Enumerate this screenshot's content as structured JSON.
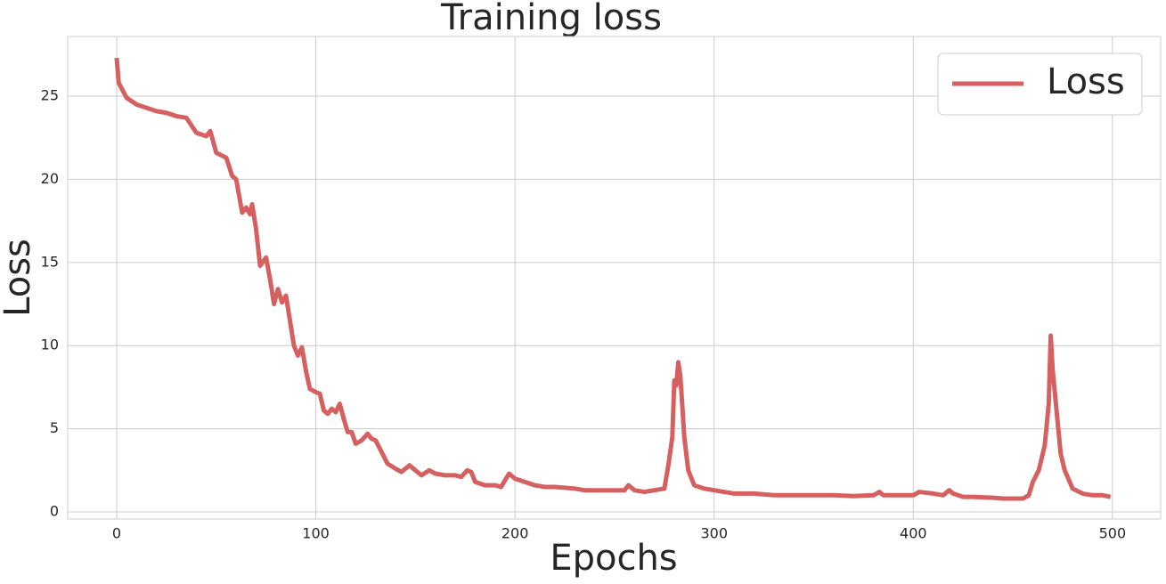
{
  "chart_data": {
    "type": "line",
    "title": "Training loss",
    "x_label": "Epochs",
    "y_label": "Loss",
    "x": [
      0,
      1,
      5,
      10,
      15,
      20,
      25,
      30,
      35,
      40,
      45,
      47,
      50,
      55,
      58,
      60,
      63,
      65,
      67,
      68,
      70,
      72,
      75,
      77,
      79,
      81,
      83,
      85,
      87,
      89,
      91,
      93,
      95,
      97,
      100,
      102,
      104,
      106,
      108,
      110,
      112,
      114,
      116,
      118,
      120,
      123,
      126,
      128,
      130,
      133,
      136,
      140,
      143,
      147,
      150,
      153,
      157,
      160,
      165,
      170,
      173,
      176,
      178,
      180,
      185,
      190,
      193,
      197,
      200,
      205,
      210,
      215,
      220,
      230,
      235,
      240,
      245,
      250,
      255,
      257,
      260,
      265,
      270,
      275,
      277,
      279,
      280,
      281,
      282,
      283,
      284,
      285,
      287,
      290,
      295,
      300,
      310,
      320,
      330,
      340,
      350,
      360,
      370,
      380,
      383,
      385,
      390,
      395,
      400,
      403,
      410,
      415,
      418,
      420,
      425,
      430,
      440,
      445,
      450,
      455,
      458,
      460,
      463,
      466,
      468,
      469,
      470,
      472,
      474,
      476,
      480,
      485,
      490,
      495,
      499
    ],
    "series": [
      {
        "name": "Loss",
        "color": "#d65f5f",
        "values": [
          27.3,
          25.8,
          24.9,
          24.5,
          24.3,
          24.1,
          24.0,
          23.8,
          23.7,
          22.8,
          22.6,
          22.9,
          21.6,
          21.3,
          20.2,
          20.0,
          18.0,
          18.3,
          17.9,
          18.5,
          17.0,
          14.8,
          15.3,
          14.0,
          12.5,
          13.4,
          12.6,
          13.0,
          11.5,
          10.0,
          9.4,
          9.9,
          8.5,
          7.4,
          7.2,
          7.1,
          6.1,
          5.9,
          6.2,
          6.0,
          6.5,
          5.6,
          4.8,
          4.8,
          4.1,
          4.3,
          4.7,
          4.4,
          4.3,
          3.6,
          2.9,
          2.6,
          2.4,
          2.8,
          2.5,
          2.2,
          2.5,
          2.3,
          2.2,
          2.2,
          2.1,
          2.5,
          2.4,
          1.8,
          1.6,
          1.6,
          1.5,
          2.3,
          2.0,
          1.8,
          1.6,
          1.5,
          1.5,
          1.4,
          1.3,
          1.3,
          1.3,
          1.3,
          1.3,
          1.6,
          1.3,
          1.2,
          1.3,
          1.4,
          2.8,
          4.5,
          7.9,
          7.6,
          9.0,
          8.2,
          6.4,
          4.5,
          2.5,
          1.6,
          1.4,
          1.3,
          1.1,
          1.1,
          1.0,
          1.0,
          1.0,
          1.0,
          0.95,
          1.0,
          1.2,
          1.0,
          1.0,
          1.0,
          1.0,
          1.2,
          1.1,
          1.0,
          1.3,
          1.1,
          0.9,
          0.9,
          0.85,
          0.8,
          0.8,
          0.8,
          1.0,
          1.8,
          2.5,
          4.0,
          6.5,
          10.6,
          8.5,
          6.0,
          3.5,
          2.5,
          1.4,
          1.1,
          1.0,
          1.0,
          0.9
        ]
      }
    ],
    "xlim": [
      -24.6,
      524.2
    ],
    "ylim": [
      -0.43,
      28.59
    ],
    "xticks": [
      0,
      100,
      200,
      300,
      400,
      500
    ],
    "yticks": [
      0,
      5,
      10,
      15,
      20,
      25
    ],
    "grid": true,
    "legend": "upper right"
  }
}
